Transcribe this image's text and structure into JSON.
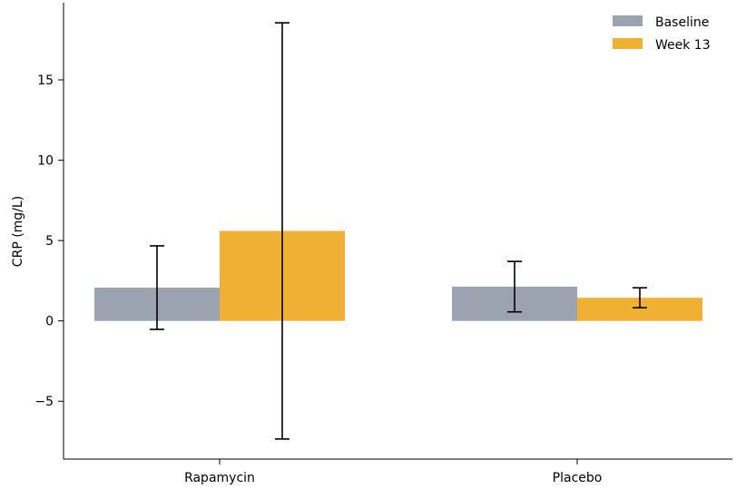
{
  "chart_data": {
    "type": "bar",
    "title": "",
    "xlabel": "",
    "ylabel": "CRP (mg/L)",
    "categories": [
      "Rapamycin",
      "Placebo"
    ],
    "series": [
      {
        "name": "Baseline",
        "color": "#9aa3af",
        "values": [
          2.07,
          2.13
        ],
        "errors": [
          2.6,
          1.57
        ]
      },
      {
        "name": "Week 13",
        "color": "#f0b034",
        "values": [
          5.6,
          1.44
        ],
        "errors": [
          12.95,
          0.62
        ]
      }
    ],
    "ylim": [
      -8.6,
      19.8
    ],
    "yticks": [
      -5,
      0,
      5,
      10,
      15
    ],
    "ytick_labels": [
      "−5",
      "0",
      "5",
      "10",
      "15"
    ],
    "grid": false,
    "legend_position": "top-right"
  }
}
